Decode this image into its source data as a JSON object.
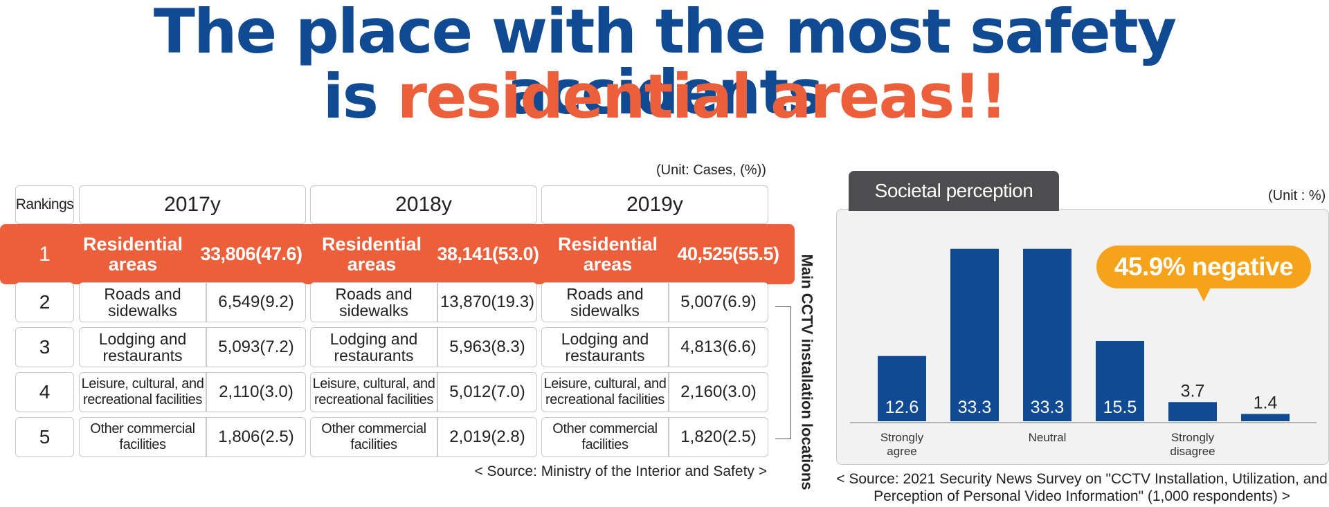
{
  "headline": {
    "line1": "The place with the most safety accidents",
    "line2_prefix": "is ",
    "line2_highlight": "residential areas!!"
  },
  "table": {
    "unit": "(Unit: Cases, (%))",
    "rank_header": "Rankings",
    "years": [
      "2017y",
      "2018y",
      "2019y"
    ],
    "rows": [
      {
        "rank": "1",
        "cells": [
          {
            "place": "Residential areas",
            "value": "33,806(47.6)"
          },
          {
            "place": "Residential areas",
            "value": "38,141(53.0)"
          },
          {
            "place": "Residential areas",
            "value": "40,525(55.5)"
          }
        ]
      },
      {
        "rank": "2",
        "cells": [
          {
            "place": "Roads and sidewalks",
            "value": "6,549(9.2)"
          },
          {
            "place": "Roads and sidewalks",
            "value": "13,870(19.3)"
          },
          {
            "place": "Roads and sidewalks",
            "value": "5,007(6.9)"
          }
        ]
      },
      {
        "rank": "3",
        "cells": [
          {
            "place": "Lodging and restaurants",
            "value": "5,093(7.2)"
          },
          {
            "place": "Lodging and restaurants",
            "value": "5,963(8.3)"
          },
          {
            "place": "Lodging and restaurants",
            "value": "4,813(6.6)"
          }
        ]
      },
      {
        "rank": "4",
        "cells": [
          {
            "place": "Leisure, cultural, and recreational facilities",
            "value": "2,110(3.0)"
          },
          {
            "place": "Leisure, cultural, and recreational facilities",
            "value": "5,012(7.0)"
          },
          {
            "place": "Leisure, cultural, and recreational facilities",
            "value": "2,160(3.0)"
          }
        ]
      },
      {
        "rank": "5",
        "cells": [
          {
            "place": "Other commercial facilities",
            "value": "1,806(2.5)"
          },
          {
            "place": "Other commercial facilities",
            "value": "2,019(2.8)"
          },
          {
            "place": "Other commercial facilities",
            "value": "1,820(2.5)"
          }
        ]
      }
    ],
    "bracket_label": "Main CCTV installation locations",
    "source": "< Source: Ministry of the Interior and Safety >"
  },
  "perception": {
    "tab_label": "Societal perception",
    "unit": "(Unit : %)",
    "badge": "45.9% negative",
    "source": "< Source: 2021 Security News Survey on \"CCTV Installation, Utilization, and Perception of Personal Video Information\" (1,000 respondents) >"
  },
  "chart_data": {
    "type": "bar",
    "categories": [
      "Strongly agree",
      "",
      "Neutral",
      "",
      "Strongly disagree",
      ""
    ],
    "values": [
      12.6,
      33.3,
      33.3,
      15.5,
      3.7,
      1.4
    ],
    "value_labels": [
      "12.6",
      "33.3",
      "33.3",
      "15.5",
      "3.7",
      "1.4"
    ],
    "ylim": [
      0,
      35
    ],
    "grid": false,
    "bar_color": "#0f4a92"
  },
  "colors": {
    "title_blue": "#0f4a92",
    "highlight_orange": "#ec5f3b",
    "badge_orange": "#f5a31a",
    "tab_gray": "#4d4d4f"
  }
}
